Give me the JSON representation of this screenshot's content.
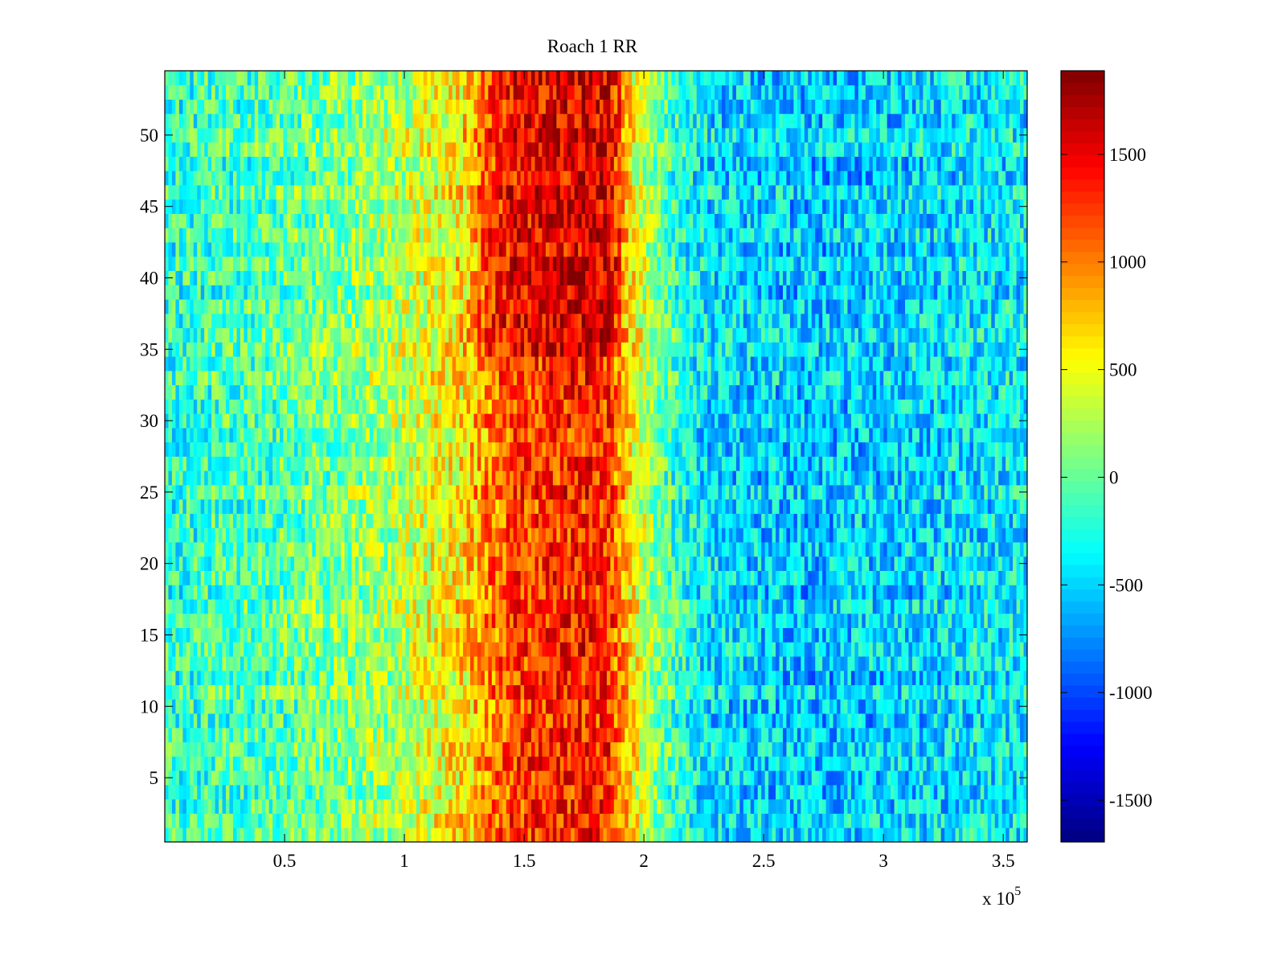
{
  "chart_data": {
    "type": "heatmap",
    "title": "Roach 1 RR",
    "xlabel": "",
    "ylabel": "",
    "x_exponent_label": "x 10",
    "x_exponent": "5",
    "xlim": [
      0,
      360000
    ],
    "ylim": [
      0.5,
      54.5
    ],
    "rows": 54,
    "x_ticks": [
      50000,
      100000,
      150000,
      200000,
      250000,
      300000,
      350000
    ],
    "x_tick_labels": [
      "0.5",
      "1",
      "1.5",
      "2",
      "2.5",
      "3",
      "3.5"
    ],
    "y_ticks": [
      5,
      10,
      15,
      20,
      25,
      30,
      35,
      40,
      45,
      50
    ],
    "y_tick_labels": [
      "5",
      "10",
      "15",
      "20",
      "25",
      "30",
      "35",
      "40",
      "45",
      "50"
    ],
    "colormap": "jet",
    "clim": [
      -1694,
      1888
    ],
    "colorbar_ticks": [
      -1500,
      -1000,
      -500,
      0,
      500,
      1000,
      1500
    ],
    "colorbar_tick_labels": [
      "-1500",
      "-1000",
      "-500",
      "0",
      "500",
      "1000",
      "1500"
    ],
    "column_bin_width": 10000,
    "column_mean_profile": [
      -200,
      -150,
      -100,
      -100,
      -50,
      0,
      50,
      100,
      200,
      250,
      400,
      500,
      650,
      1000,
      1200,
      1250,
      1300,
      1350,
      1300,
      600,
      100,
      -200,
      -400,
      -450,
      -500,
      -500,
      -550,
      -550,
      -500,
      -500,
      -500,
      -450,
      -450,
      -400,
      -400,
      -400
    ],
    "upper_rows_center_boost": 250,
    "noise_amplitude": 450
  }
}
